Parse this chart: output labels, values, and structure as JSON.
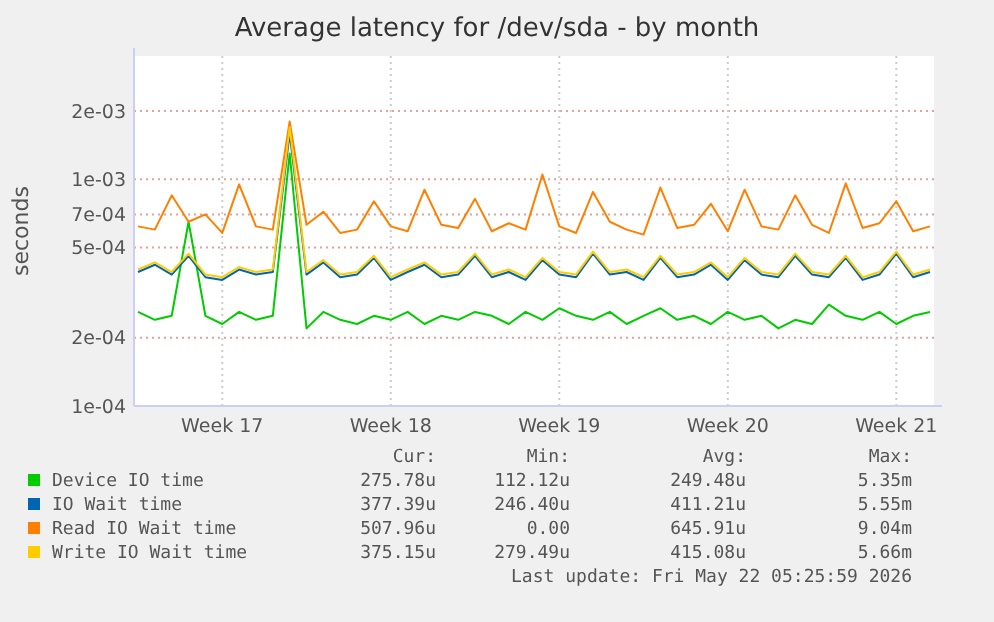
{
  "chart_data": {
    "type": "line",
    "title": "Average latency for /dev/sda - by month",
    "ylabel": "seconds",
    "log": "y",
    "grid": true,
    "legend": "bottom",
    "marker": "none",
    "line_style": "solid",
    "categories": [
      null,
      null,
      null,
      null,
      null,
      "Week 17",
      null,
      null,
      null,
      null,
      null,
      null,
      null,
      null,
      null,
      "Week 18",
      null,
      null,
      null,
      null,
      null,
      null,
      null,
      null,
      null,
      "Week 19",
      null,
      null,
      null,
      null,
      null,
      null,
      null,
      null,
      null,
      "Week 20",
      null,
      null,
      null,
      null,
      null,
      null,
      null,
      null,
      null,
      "Week 21",
      null,
      null
    ],
    "ylim": [
      0.0001,
      0.0035
    ],
    "yticks": [
      {
        "value": 0.0001,
        "label": "1e-04"
      },
      {
        "value": 0.0002,
        "label": "2e-04"
      },
      {
        "value": 0.0005,
        "label": "5e-04"
      },
      {
        "value": 0.0007,
        "label": "7e-04"
      },
      {
        "value": 0.001,
        "label": "1e-03"
      },
      {
        "value": 0.002,
        "label": "2e-03"
      }
    ],
    "series": [
      {
        "name": "Device IO time",
        "color": "#00cc00",
        "values": [
          0.00026,
          0.00024,
          0.00025,
          0.00065,
          0.00025,
          0.00023,
          0.00026,
          0.00024,
          0.00025,
          0.0013,
          0.00022,
          0.00026,
          0.00024,
          0.00023,
          0.00025,
          0.00024,
          0.00026,
          0.00023,
          0.00025,
          0.00024,
          0.00026,
          0.00025,
          0.00023,
          0.00026,
          0.00024,
          0.00027,
          0.00025,
          0.00024,
          0.00026,
          0.00023,
          0.00025,
          0.00027,
          0.00024,
          0.00025,
          0.00023,
          0.00026,
          0.00024,
          0.00025,
          0.00022,
          0.00024,
          0.00023,
          0.00028,
          0.00025,
          0.00024,
          0.00026,
          0.00023,
          0.00025,
          0.00026
        ]
      },
      {
        "name": "IO Wait time",
        "color": "#0066b3",
        "values": [
          0.00039,
          0.00042,
          0.00038,
          0.00046,
          0.00037,
          0.00036,
          0.0004,
          0.00038,
          0.00039,
          0.0016,
          0.00038,
          0.00043,
          0.00037,
          0.00038,
          0.00045,
          0.00036,
          0.00039,
          0.00042,
          0.00037,
          0.00038,
          0.00046,
          0.00037,
          0.00039,
          0.00036,
          0.00044,
          0.00038,
          0.00037,
          0.00047,
          0.00038,
          0.00039,
          0.00036,
          0.00045,
          0.00037,
          0.00038,
          0.00042,
          0.00036,
          0.00044,
          0.00038,
          0.00037,
          0.00046,
          0.00038,
          0.00037,
          0.00045,
          0.00036,
          0.00038,
          0.00047,
          0.00037,
          0.00039
        ]
      },
      {
        "name": "Read IO Wait time",
        "color": "#ff8000",
        "values": [
          0.00062,
          0.0006,
          0.00085,
          0.00065,
          0.0007,
          0.00058,
          0.00095,
          0.00062,
          0.0006,
          0.0018,
          0.00063,
          0.00072,
          0.00058,
          0.0006,
          0.0008,
          0.00062,
          0.00059,
          0.0009,
          0.00063,
          0.00061,
          0.00082,
          0.00059,
          0.00064,
          0.0006,
          0.00105,
          0.00062,
          0.00058,
          0.00088,
          0.00065,
          0.0006,
          0.00057,
          0.00092,
          0.00061,
          0.00063,
          0.00078,
          0.00059,
          0.0009,
          0.00062,
          0.0006,
          0.00085,
          0.00063,
          0.00058,
          0.00096,
          0.00061,
          0.00064,
          0.0008,
          0.00059,
          0.00062
        ]
      },
      {
        "name": "Write IO Wait time",
        "color": "#ffcc00",
        "values": [
          0.0004,
          0.00043,
          0.00039,
          0.00047,
          0.00038,
          0.00037,
          0.00041,
          0.00039,
          0.0004,
          0.0017,
          0.00039,
          0.00044,
          0.00038,
          0.00039,
          0.00046,
          0.00037,
          0.0004,
          0.00043,
          0.00038,
          0.00039,
          0.00047,
          0.00038,
          0.0004,
          0.00037,
          0.00045,
          0.00039,
          0.00038,
          0.00048,
          0.00039,
          0.0004,
          0.00037,
          0.00046,
          0.00038,
          0.00039,
          0.00043,
          0.00037,
          0.00045,
          0.00039,
          0.00038,
          0.00047,
          0.00039,
          0.00038,
          0.00046,
          0.00037,
          0.00039,
          0.00048,
          0.00038,
          0.0004
        ]
      }
    ],
    "annotations": [
      "Cur:",
      "Min:",
      "Avg:",
      "Max:",
      "275.78u",
      "112.12u",
      "249.48u",
      "5.35m",
      "377.39u",
      "246.40u",
      "411.21u",
      "5.55m",
      "507.96u",
      "0.00",
      "645.91u",
      "9.04m",
      "375.15u",
      "279.49u",
      "415.08u",
      "5.66m",
      "Last update: Fri May 22 05:25:59 2026"
    ]
  }
}
